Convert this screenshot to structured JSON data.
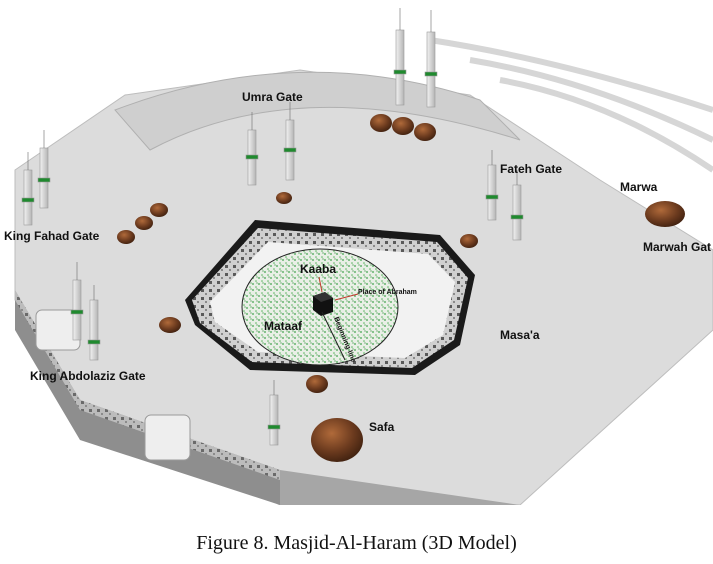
{
  "caption": "Figure 8. Masjid-Al-Haram (3D Model)",
  "labels": {
    "umra_gate": "Umra Gate",
    "fateh_gate": "Fateh Gate",
    "marwa": "Marwa",
    "marwah_gate": "Marwah Gat",
    "king_fahad_gate": "King Fahad  Gate",
    "kaaba": "Kaaba",
    "place_of_abraham": "Place of Abraham",
    "mataaf": "Mataaf",
    "beginning_line": "Beginning line",
    "masaa": "Masa'a",
    "king_abdolaziz_gate": "King Abdolaziz Gate",
    "safa": "Safa"
  },
  "colors": {
    "background": "#ffffff",
    "roof": "#dcdcdc",
    "wall": "#c4c4c4",
    "dome": "#6b3a1e",
    "minaret_band": "#1f8a2e",
    "mataaf_grass": "#3fa34d",
    "kaaba": "#111111",
    "courtyard_rim": "#1a1a1a"
  }
}
